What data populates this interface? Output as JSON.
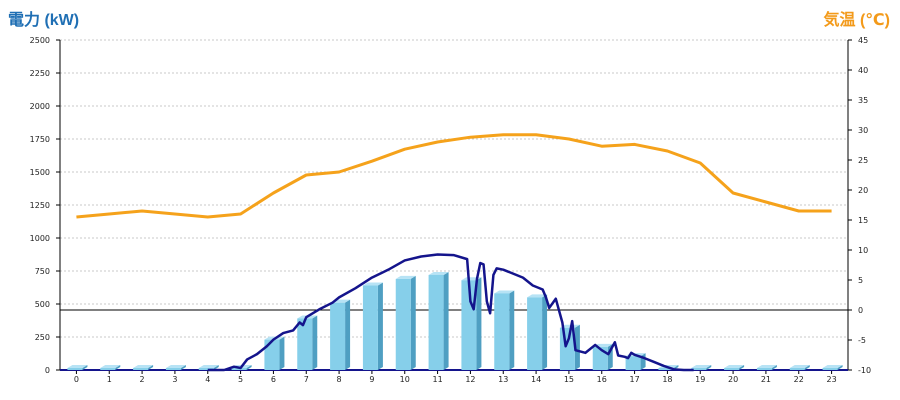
{
  "chart_data": {
    "type": "bar",
    "left_axis_title": "電力 (kW)",
    "right_axis_title": "気温 (℃)",
    "categories": [
      "0",
      "1",
      "2",
      "3",
      "4",
      "5",
      "6",
      "7",
      "8",
      "9",
      "10",
      "11",
      "12",
      "13",
      "14",
      "15",
      "16",
      "17",
      "18",
      "19",
      "20",
      "21",
      "22",
      "23"
    ],
    "y_left": {
      "ticks": [
        "0",
        "250",
        "500",
        "750",
        "1000",
        "1250",
        "1500",
        "1750",
        "2000",
        "2250",
        "2500"
      ],
      "ylim": [
        0,
        2500
      ]
    },
    "y_right": {
      "ticks": [
        "-10",
        "-5",
        "0",
        "5",
        "10",
        "15",
        "20",
        "25",
        "30",
        "35",
        "40",
        "45"
      ],
      "ylim": [
        -10,
        45
      ]
    },
    "series": [
      {
        "kind": "bar",
        "axis": "left",
        "values": [
          0,
          0,
          0,
          0,
          0,
          10,
          230,
          390,
          510,
          640,
          690,
          720,
          680,
          580,
          550,
          320,
          175,
          105,
          15,
          0,
          0,
          0,
          0,
          0
        ]
      },
      {
        "kind": "line",
        "axis": "left",
        "points": [
          [
            4.0,
            0
          ],
          [
            4.5,
            0
          ],
          [
            4.8,
            25
          ],
          [
            5.0,
            15
          ],
          [
            5.2,
            80
          ],
          [
            5.5,
            120
          ],
          [
            5.8,
            180
          ],
          [
            6.0,
            230
          ],
          [
            6.3,
            280
          ],
          [
            6.6,
            300
          ],
          [
            6.8,
            360
          ],
          [
            6.9,
            340
          ],
          [
            7.0,
            400
          ],
          [
            7.4,
            460
          ],
          [
            7.8,
            510
          ],
          [
            8.0,
            550
          ],
          [
            8.5,
            620
          ],
          [
            9.0,
            700
          ],
          [
            9.5,
            760
          ],
          [
            10.0,
            830
          ],
          [
            10.5,
            860
          ],
          [
            11.0,
            875
          ],
          [
            11.5,
            870
          ],
          [
            11.9,
            840
          ],
          [
            12.0,
            520
          ],
          [
            12.1,
            460
          ],
          [
            12.2,
            690
          ],
          [
            12.3,
            810
          ],
          [
            12.4,
            800
          ],
          [
            12.5,
            520
          ],
          [
            12.6,
            430
          ],
          [
            12.7,
            720
          ],
          [
            12.8,
            770
          ],
          [
            13.0,
            760
          ],
          [
            13.3,
            730
          ],
          [
            13.6,
            700
          ],
          [
            13.9,
            640
          ],
          [
            14.2,
            610
          ],
          [
            14.3,
            550
          ],
          [
            14.4,
            470
          ],
          [
            14.6,
            540
          ],
          [
            14.8,
            360
          ],
          [
            14.9,
            180
          ],
          [
            15.0,
            240
          ],
          [
            15.1,
            370
          ],
          [
            15.2,
            150
          ],
          [
            15.5,
            130
          ],
          [
            15.8,
            190
          ],
          [
            16.0,
            150
          ],
          [
            16.2,
            120
          ],
          [
            16.4,
            210
          ],
          [
            16.5,
            110
          ],
          [
            16.7,
            100
          ],
          [
            16.8,
            90
          ],
          [
            16.9,
            130
          ],
          [
            17.0,
            115
          ],
          [
            17.3,
            90
          ],
          [
            17.6,
            60
          ],
          [
            17.9,
            30
          ],
          [
            18.2,
            5
          ],
          [
            18.5,
            0
          ],
          [
            18.8,
            0
          ]
        ]
      },
      {
        "kind": "line",
        "axis": "right",
        "values": [
          15.5,
          16,
          16.5,
          16,
          15.5,
          16,
          19.5,
          22.5,
          23,
          24.8,
          26.8,
          28,
          28.8,
          29.2,
          29.2,
          28.5,
          27.3,
          27.6,
          26.5,
          24.5,
          19.5,
          18,
          16.5,
          16.5
        ]
      }
    ],
    "colors": {
      "bar_face": "#86cfea",
      "bar_side": "#4f9fc2",
      "bar_top": "#b7e3f5",
      "power_line": "#14148c",
      "temp_line": "#f5a21b",
      "grid": "#c8c8c8"
    }
  }
}
